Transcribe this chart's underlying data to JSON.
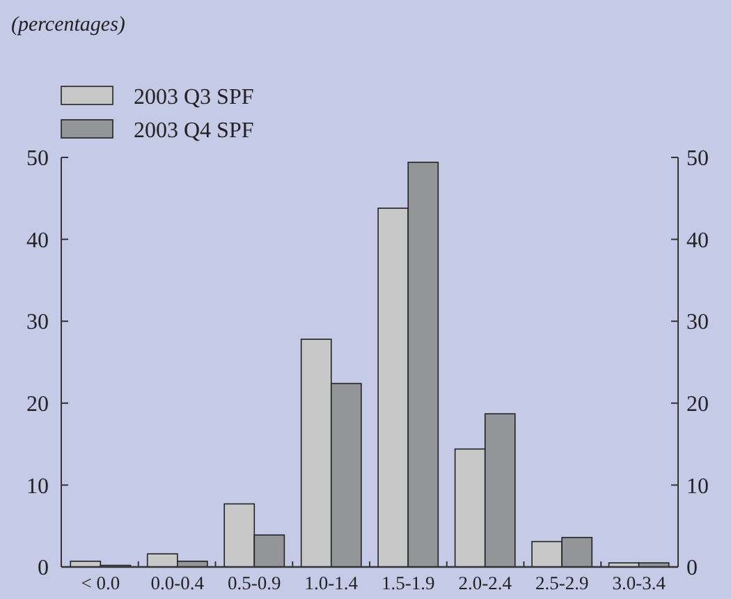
{
  "chart_data": {
    "type": "bar",
    "subtitle": "(percentages)",
    "categories": [
      "< 0.0",
      "0.0-0.4",
      "0.5-0.9",
      "1.0-1.4",
      "1.5-1.9",
      "2.0-2.4",
      "2.5-2.9",
      "3.0-3.4"
    ],
    "series": [
      {
        "name": "2003 Q3 SPF",
        "color": "#c8c8c8",
        "values": [
          0.7,
          1.6,
          7.7,
          27.8,
          43.8,
          14.4,
          3.1,
          0.5
        ]
      },
      {
        "name": "2003 Q4 SPF",
        "color": "#939598",
        "values": [
          0.2,
          0.7,
          3.9,
          22.4,
          49.4,
          18.7,
          3.6,
          0.5
        ]
      }
    ],
    "ylim": [
      0,
      50
    ],
    "yticks": [
      0,
      10,
      20,
      30,
      40,
      50
    ],
    "y2lim": [
      0,
      50
    ],
    "y2ticks": [
      0,
      10,
      20,
      30,
      40,
      50
    ],
    "legend": "top left",
    "grid": false
  }
}
